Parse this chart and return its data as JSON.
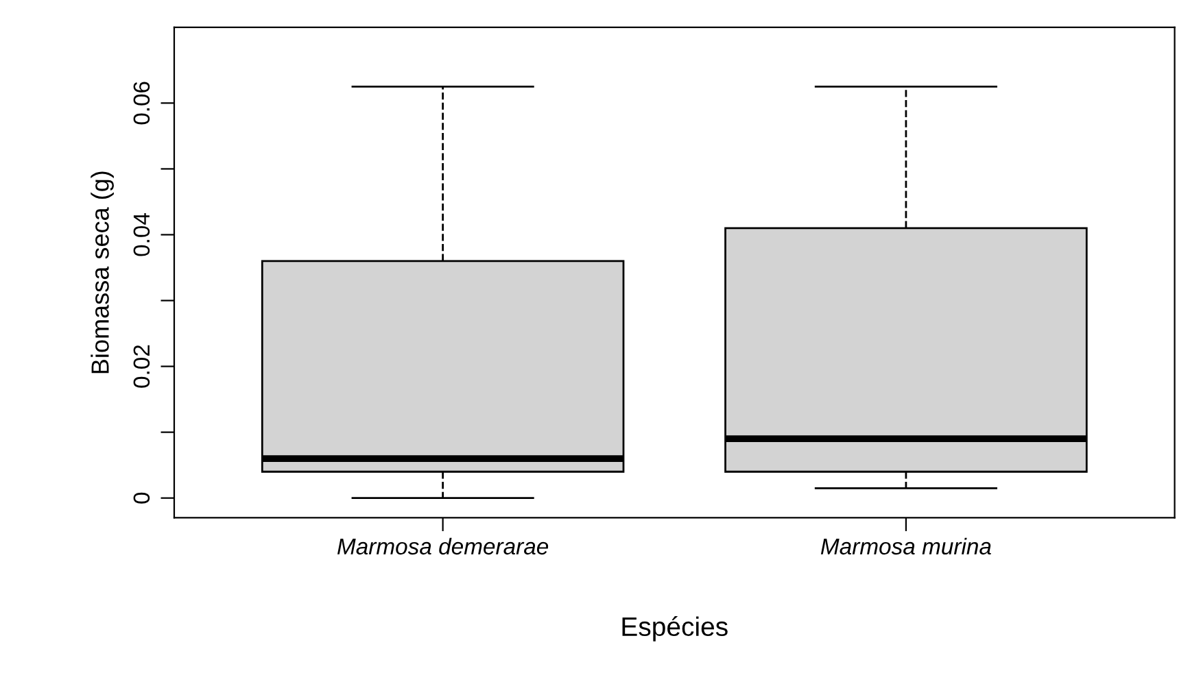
{
  "chart_data": {
    "type": "box",
    "xlabel": "Espécies",
    "ylabel": "Biomassa seca (g)",
    "categories": [
      "Marmosa demerarae",
      "Marmosa murina"
    ],
    "boxes": [
      {
        "low": 0,
        "q1": 0.004,
        "median": 0.006,
        "q3": 0.036,
        "high": 0.0625
      },
      {
        "low": 0.0015,
        "q1": 0.004,
        "median": 0.009,
        "q3": 0.041,
        "high": 0.0625
      }
    ],
    "color": "#d3d3d3",
    "ylim": [
      -0.003,
      0.0715
    ],
    "yticks": [
      0,
      {
        "value": 0.01,
        "label": null
      },
      0.02,
      {
        "value": 0.03,
        "label": null
      },
      0.04,
      {
        "value": 0.05,
        "label": null
      },
      0.06
    ],
    "grid": false
  }
}
